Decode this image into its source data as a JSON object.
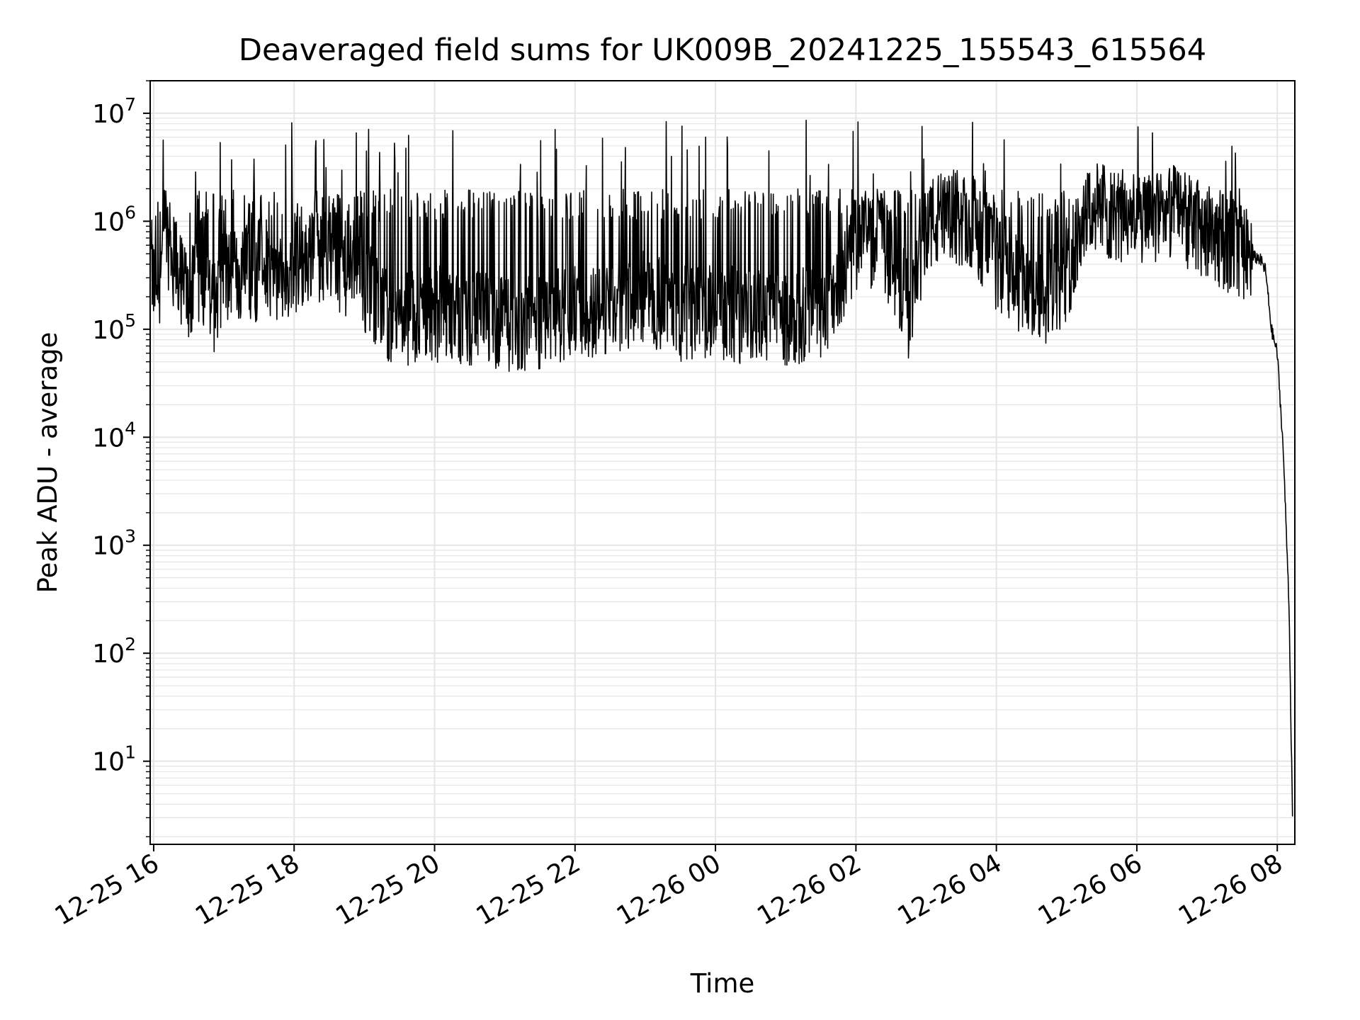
{
  "chart_data": {
    "type": "line",
    "title": "Deaveraged field sums for UK009B_20241225_155543_615564",
    "xlabel": "Time",
    "ylabel": "Peak ADU - average",
    "yscale": "log",
    "grid": true,
    "line_color": "#000000",
    "grid_color": "#e5e5e5",
    "xlim": [
      "2024-12-25 15:57",
      "2024-12-26 08:15"
    ],
    "ylim": [
      1.7,
      20000000
    ],
    "x_ticks": [
      {
        "label": "12-25 16",
        "value": "2024-12-25 16:00"
      },
      {
        "label": "12-25 18",
        "value": "2024-12-25 18:00"
      },
      {
        "label": "12-25 20",
        "value": "2024-12-25 20:00"
      },
      {
        "label": "12-25 22",
        "value": "2024-12-25 22:00"
      },
      {
        "label": "12-26 00",
        "value": "2024-12-26 00:00"
      },
      {
        "label": "12-26 02",
        "value": "2024-12-26 02:00"
      },
      {
        "label": "12-26 04",
        "value": "2024-12-26 04:00"
      },
      {
        "label": "12-26 06",
        "value": "2024-12-26 06:00"
      },
      {
        "label": "12-26 08",
        "value": "2024-12-26 08:00"
      }
    ],
    "y_ticks": [
      {
        "base": "10",
        "exp": "1",
        "value": 10
      },
      {
        "base": "10",
        "exp": "2",
        "value": 100
      },
      {
        "base": "10",
        "exp": "3",
        "value": 1000
      },
      {
        "base": "10",
        "exp": "4",
        "value": 10000
      },
      {
        "base": "10",
        "exp": "5",
        "value": 100000
      },
      {
        "base": "10",
        "exp": "6",
        "value": 1000000
      },
      {
        "base": "10",
        "exp": "7",
        "value": 10000000
      }
    ],
    "series": [
      {
        "x": [
          "2024-12-25 15:58",
          "2024-12-25 16:00",
          "2024-12-25 16:05",
          "2024-12-25 16:10",
          "2024-12-25 16:20",
          "2024-12-25 16:30",
          "2024-12-25 16:40",
          "2024-12-25 16:45",
          "2024-12-25 16:50",
          "2024-12-25 17:00",
          "2024-12-25 17:10",
          "2024-12-25 17:20",
          "2024-12-25 17:30",
          "2024-12-25 17:40",
          "2024-12-25 17:50",
          "2024-12-25 18:00",
          "2024-12-25 18:15",
          "2024-12-25 18:30",
          "2024-12-25 18:45",
          "2024-12-25 19:00",
          "2024-12-25 19:15",
          "2024-12-25 19:30",
          "2024-12-25 19:45",
          "2024-12-25 20:00",
          "2024-12-25 20:30",
          "2024-12-25 21:00",
          "2024-12-25 21:30",
          "2024-12-25 22:00",
          "2024-12-25 22:30",
          "2024-12-25 23:00",
          "2024-12-25 23:30",
          "2024-12-26 00:00",
          "2024-12-26 00:30",
          "2024-12-26 01:00",
          "2024-12-26 01:30",
          "2024-12-26 02:00",
          "2024-12-26 02:20",
          "2024-12-26 02:35",
          "2024-12-26 02:45",
          "2024-12-26 03:00",
          "2024-12-26 03:20",
          "2024-12-26 03:40",
          "2024-12-26 04:00",
          "2024-12-26 04:20",
          "2024-12-26 04:40",
          "2024-12-26 05:00",
          "2024-12-26 05:15",
          "2024-12-26 05:30",
          "2024-12-26 05:50",
          "2024-12-26 06:10",
          "2024-12-26 06:30",
          "2024-12-26 06:50",
          "2024-12-26 07:10",
          "2024-12-26 07:30",
          "2024-12-26 07:45",
          "2024-12-26 07:50",
          "2024-12-26 07:55",
          "2024-12-26 08:00",
          "2024-12-26 08:05",
          "2024-12-26 08:10",
          "2024-12-26 08:13"
        ],
        "y": [
          400000,
          250000,
          300000,
          800000,
          350000,
          200000,
          250000,
          300000,
          150000,
          350000,
          300000,
          350000,
          300000,
          350000,
          250000,
          400000,
          450000,
          500000,
          350000,
          250000,
          150000,
          120000,
          130000,
          140000,
          130000,
          110000,
          120000,
          150000,
          140000,
          200000,
          140000,
          150000,
          130000,
          130000,
          140000,
          600000,
          700000,
          350000,
          150000,
          900000,
          1100000,
          1000000,
          400000,
          250000,
          200000,
          300000,
          1300000,
          1300000,
          1100000,
          1000000,
          1200000,
          900000,
          700000,
          500000,
          450000,
          350000,
          100000,
          60000,
          8000,
          300,
          3
        ]
      }
    ]
  }
}
